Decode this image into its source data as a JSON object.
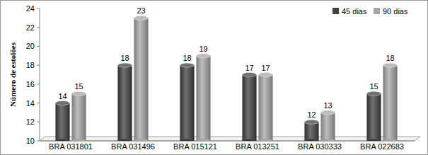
{
  "chart_data": {
    "type": "bar",
    "y_label": "Número de estolões",
    "categories": [
      "BRA 031801",
      "BRA 031496",
      "BRA 015121",
      "BRA 013251",
      "BRA 030333",
      "BRA 022683"
    ],
    "series": [
      {
        "name": "45 dias",
        "color": "#404040",
        "values": [
          14,
          18,
          18,
          17,
          12,
          15
        ]
      },
      {
        "name": "90 dias",
        "color": "#a6a6a6",
        "values": [
          15,
          23,
          19,
          17,
          13,
          18
        ]
      }
    ],
    "ylim": [
      10,
      24
    ],
    "yticks": [
      10,
      12,
      14,
      16,
      18,
      20,
      22,
      24
    ],
    "grid": false,
    "legend": "top-right",
    "data_labels": true
  }
}
